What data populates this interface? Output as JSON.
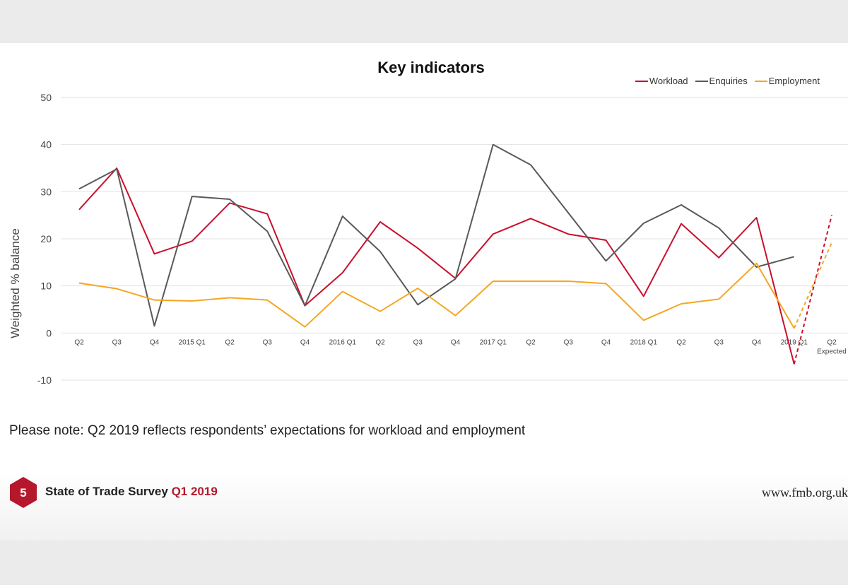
{
  "page": {
    "note": "Please note: Q2 2019 reflects respondents’ expectations for workload and employment",
    "footer": {
      "badge_number": "5",
      "title_main": "State of Trade Survey",
      "title_accent": "Q1 2019",
      "url": "www.fmb.org.uk"
    }
  },
  "chart_data": {
    "type": "line",
    "title": "Key indicators",
    "xlabel": "",
    "ylabel": "Weighted % balance",
    "ylim": [
      -10,
      50
    ],
    "yticks": [
      -10,
      0,
      10,
      20,
      30,
      40,
      50
    ],
    "grid": true,
    "legend_position": "top-right",
    "categories": [
      "Q2",
      "Q3",
      "Q4",
      "2015 Q1",
      "Q2",
      "Q3",
      "Q4",
      "2016 Q1",
      "Q2",
      "Q3",
      "Q4",
      "2017 Q1",
      "Q2",
      "Q3",
      "Q4",
      "2018 Q1",
      "Q2",
      "Q3",
      "Q4",
      "2019 Q1",
      "Q2\nExpected"
    ],
    "series": [
      {
        "name": "Workload",
        "color": "#c8102e",
        "values": [
          26.2,
          35,
          16.8,
          19.5,
          27.6,
          25.3,
          5.8,
          12.8,
          23.6,
          18,
          11.6,
          21,
          24.3,
          21,
          19.7,
          7.8,
          23.2,
          16,
          24.5,
          -6.6,
          null
        ],
        "expected": 25
      },
      {
        "name": "Enquiries",
        "color": "#595959",
        "values": [
          30.6,
          34.8,
          1.5,
          29,
          28.4,
          21.6,
          5.8,
          24.8,
          17.3,
          6,
          11.5,
          40,
          35.7,
          25.5,
          15.3,
          23.3,
          27.2,
          22.3,
          14,
          16.2,
          null
        ]
      },
      {
        "name": "Employment",
        "color": "#f5a623",
        "values": [
          10.6,
          9.4,
          7,
          6.8,
          7.5,
          7,
          1.3,
          8.8,
          4.6,
          9.5,
          3.7,
          11,
          11,
          11,
          10.5,
          2.7,
          6.2,
          7.2,
          14.8,
          1,
          null
        ],
        "expected": 19.2
      }
    ]
  }
}
